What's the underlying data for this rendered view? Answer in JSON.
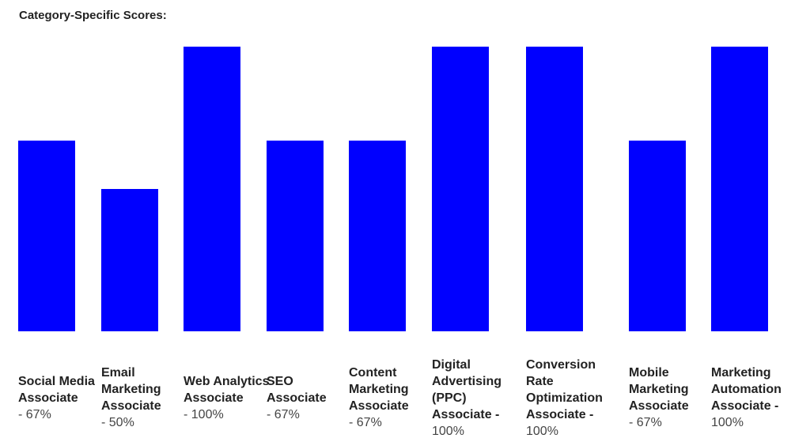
{
  "title": "Category-Specific Scores:",
  "colors": {
    "bar": "#0000ff"
  },
  "chart_data": {
    "type": "bar",
    "title": "Category-Specific Scores:",
    "ylim": [
      0,
      100
    ],
    "grid": false,
    "categories": [
      "Social Media Associate",
      "Email Marketing Associate",
      "Web Analytics Associate",
      "SEO Associate",
      "Content Marketing Associate",
      "Digital Advertising (PPC) Associate",
      "Conversion Rate Optimization Associate",
      "Mobile Marketing Associate",
      "Marketing Automation Associate"
    ],
    "values": [
      67,
      50,
      100,
      67,
      67,
      100,
      100,
      67,
      100
    ],
    "labels": [
      {
        "name": "Social Media Associate",
        "score": "- 67%"
      },
      {
        "name": "Email Marketing Associate",
        "score": "- 50%"
      },
      {
        "name": "Web Analytics Associate",
        "score": "- 100%"
      },
      {
        "name": "SEO Associate",
        "score": "- 67%"
      },
      {
        "name": "Content Marketing Associate",
        "score": "- 67%"
      },
      {
        "name": "Digital Advertising (PPC) Associate -",
        "score": "100%"
      },
      {
        "name": "Conversion Rate Optimization Associate -",
        "score": "100%"
      },
      {
        "name": "Mobile Marketing Associate",
        "score": "- 67%"
      },
      {
        "name": "Marketing Automation Associate -",
        "score": "100%"
      }
    ]
  }
}
